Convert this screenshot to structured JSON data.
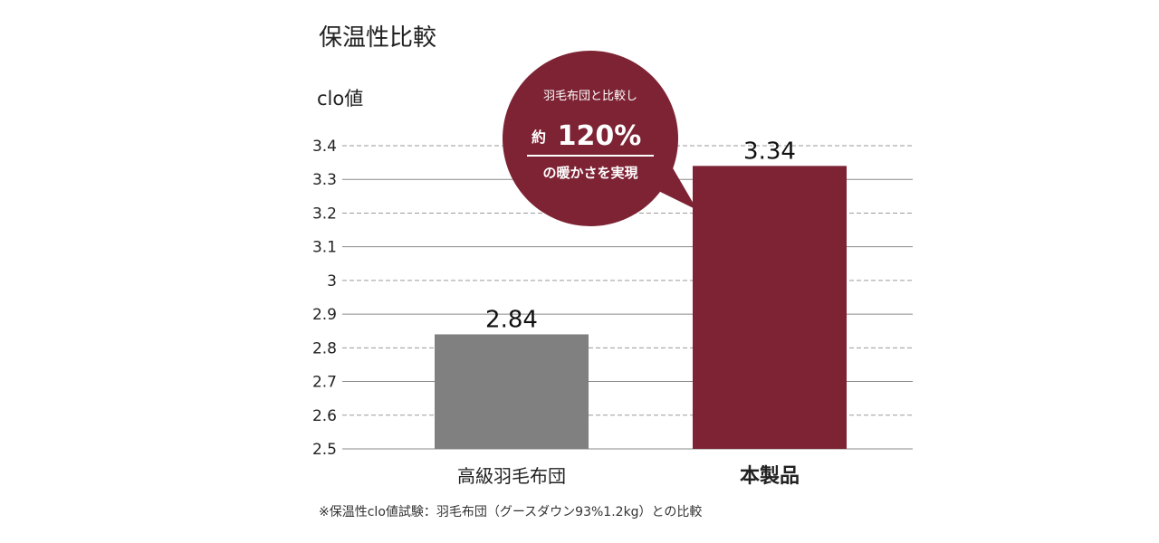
{
  "chart_data": {
    "type": "bar",
    "title": "保温性比較",
    "ylabel": "clo値",
    "ylim": [
      2.5,
      3.4
    ],
    "yticks": [
      "2.5",
      "2.6",
      "2.7",
      "2.8",
      "2.9",
      "3",
      "3.1",
      "3.2",
      "3.3",
      "3.4"
    ],
    "yticks_values": [
      2.5,
      2.6,
      2.7,
      2.8,
      2.9,
      3.0,
      3.1,
      3.2,
      3.3,
      3.4
    ],
    "categories": [
      "高級羽毛布団",
      "本製品"
    ],
    "values": [
      2.84,
      3.34
    ],
    "value_labels": [
      "2.84",
      "3.34"
    ],
    "bar_colors": [
      "#808080",
      "#7d2334"
    ],
    "highlight_color": "#7d2334",
    "grid": true,
    "note": "※保温性clo値試験：羽毛布団（グースダウン93%1.2kg）との比較",
    "callout": {
      "line1": "羽毛布団と比較し",
      "prefix": "約",
      "percent": "120%",
      "line3": "の暖かさを実現"
    }
  }
}
